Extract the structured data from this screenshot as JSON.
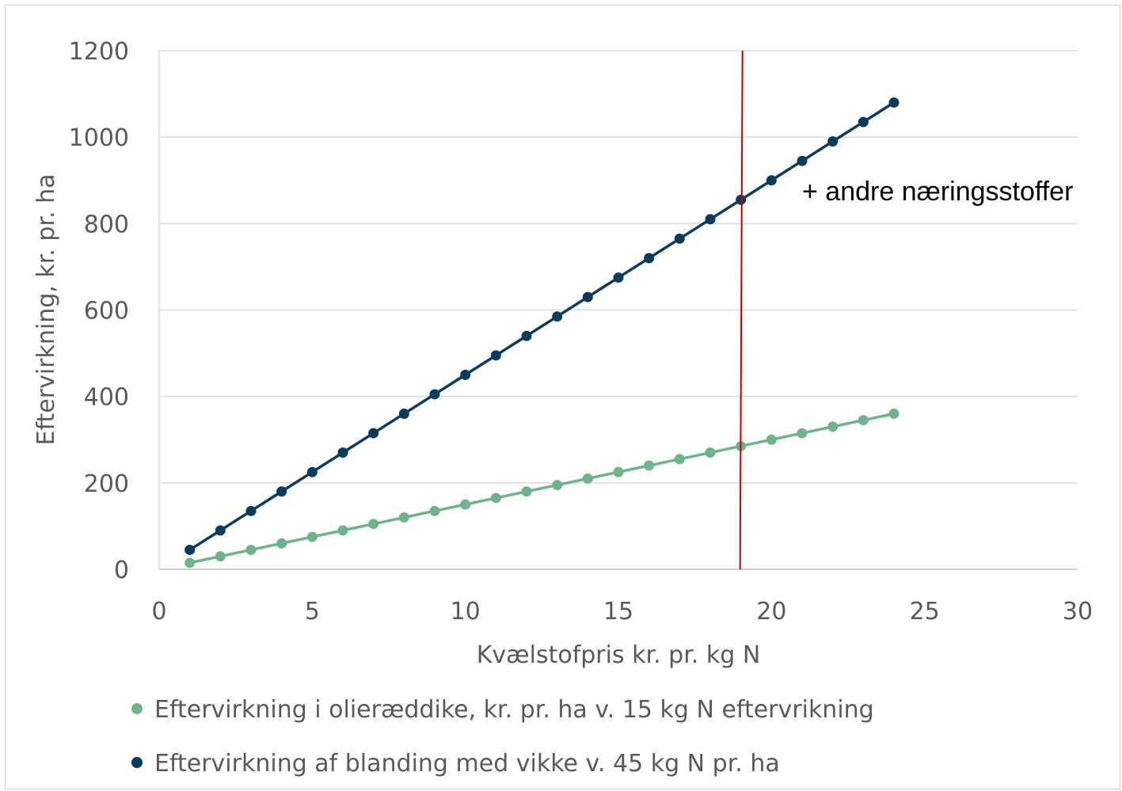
{
  "chart_data": {
    "type": "line",
    "xlabel": "Kvælstofpris kr. pr. kg N",
    "ylabel": "Eftervirkning, kr. pr. ha",
    "xlim": [
      0,
      30
    ],
    "ylim": [
      0,
      1200
    ],
    "xticks": [
      0,
      5,
      10,
      15,
      20,
      25,
      30
    ],
    "yticks": [
      0,
      200,
      400,
      600,
      800,
      1000,
      1200
    ],
    "grid": "horizontal",
    "legend_position": "bottom",
    "x": [
      1,
      2,
      3,
      4,
      5,
      6,
      7,
      8,
      9,
      10,
      11,
      12,
      13,
      14,
      15,
      16,
      17,
      18,
      19,
      20,
      21,
      22,
      23,
      24
    ],
    "series": [
      {
        "name": "Eftervirkning i olieræddike, kr. pr. ha v. 15 kg N eftervrikning",
        "color": "#6fb38a",
        "values": [
          15,
          30,
          45,
          60,
          75,
          90,
          105,
          120,
          135,
          150,
          165,
          180,
          195,
          210,
          225,
          240,
          255,
          270,
          285,
          300,
          315,
          330,
          345,
          360
        ]
      },
      {
        "name": "Eftervirkning af blanding med vikke v. 45 kg N pr. ha",
        "color": "#0b3c5d",
        "values": [
          45,
          90,
          135,
          180,
          225,
          270,
          315,
          360,
          405,
          450,
          495,
          540,
          585,
          630,
          675,
          720,
          765,
          810,
          855,
          900,
          945,
          990,
          1035,
          1080
        ]
      }
    ],
    "reference_line": {
      "x": 19,
      "color": "#c00000"
    },
    "annotation": "+ andre næringsstoffer"
  }
}
